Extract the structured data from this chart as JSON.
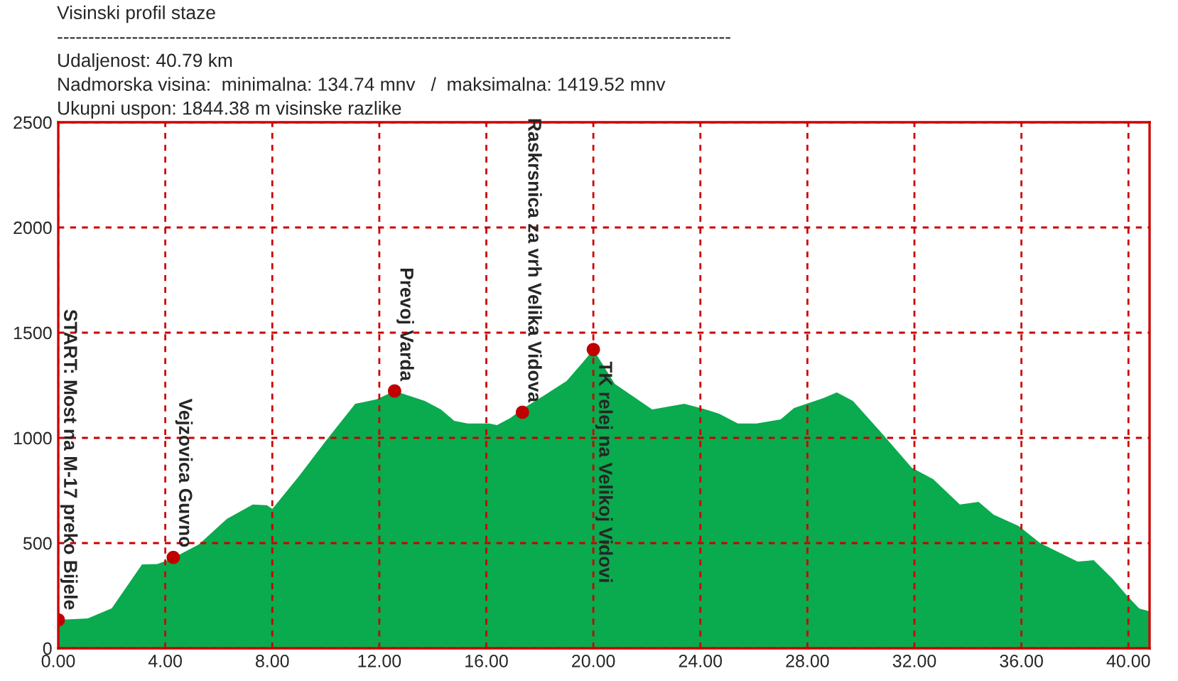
{
  "chart_data": {
    "type": "area",
    "title": "Visinski profil staze",
    "annotations": [
      "------------------------------------------------------------------------------------------------------------",
      "Udaljenost: 40.79 km",
      "Nadmorska visina:  minimalna: 134.74 mnv   /  maksimalna: 1419.52 mnv",
      "Ukupni uspon: 1844.38 m visinske razlike",
      {
        "text": "START: Most na M-17 preko Bijele",
        "x": 0,
        "y": 135
      },
      {
        "text": "Vejzovica Guvno",
        "x": 4.3,
        "y": 432
      },
      {
        "text": "Prevoj Varda",
        "x": 12.57,
        "y": 1223
      },
      {
        "text": "Raskrsnica za vrh Velika Vidova",
        "x": 17.35,
        "y": 1122
      },
      {
        "text": "TK relej na Velikoj Vidovi",
        "x": 20.0,
        "y": 1420
      }
    ],
    "series": [
      {
        "color": "#0aaa4e",
        "x": [
          0,
          1.1,
          2.0,
          3.13,
          3.7,
          4.24,
          5.25,
          6.3,
          7.27,
          7.8,
          8.0,
          9.0,
          10.0,
          11.1,
          11.9,
          12.57,
          13.7,
          14.3,
          14.8,
          15.3,
          16.1,
          16.4,
          16.9,
          17.4,
          18.0,
          19.0,
          19.6,
          19.95,
          20.0,
          20.8,
          22.2,
          23.4,
          24.2,
          24.7,
          25.4,
          26.1,
          27.0,
          27.5,
          28.6,
          29.1,
          29.7,
          30.7,
          31.9,
          32.7,
          33.7,
          34.4,
          34.96,
          35.9,
          36.7,
          38.1,
          38.7,
          39.4,
          39.9,
          40.4,
          40.79
        ],
        "values": [
          135,
          142,
          190,
          399,
          400,
          426,
          493,
          615,
          683,
          680,
          662,
          818,
          986,
          1162,
          1183,
          1223,
          1176,
          1135,
          1081,
          1068,
          1068,
          1061,
          1095,
          1142,
          1189,
          1270,
          1358,
          1412,
          1420,
          1257,
          1135,
          1162,
          1135,
          1115,
          1068,
          1068,
          1088,
          1142,
          1189,
          1216,
          1176,
          1034,
          858,
          804,
          683,
          696,
          635,
          581,
          500,
          412,
          419,
          331,
          257,
          189,
          176
        ]
      },
      {
        "type": "scatter",
        "color": "#c00000",
        "marker": "circle",
        "x": [
          0,
          4.3,
          12.57,
          17.35,
          20.0
        ],
        "values": [
          135,
          432,
          1223,
          1122,
          1420
        ]
      }
    ],
    "xlim": [
      0,
      40.79
    ],
    "ylim": [
      0,
      2500
    ],
    "xticks": [
      {
        "value": 0,
        "label": "0.00"
      },
      {
        "value": 4,
        "label": "4.00"
      },
      {
        "value": 8,
        "label": "8.00"
      },
      {
        "value": 12,
        "label": "12.00"
      },
      {
        "value": 16,
        "label": "16.00"
      },
      {
        "value": 20,
        "label": "20.00"
      },
      {
        "value": 24,
        "label": "24.00"
      },
      {
        "value": 28,
        "label": "28.00"
      },
      {
        "value": 32,
        "label": "32.00"
      },
      {
        "value": 36,
        "label": "36.00"
      },
      {
        "value": 40,
        "label": "40.00"
      }
    ],
    "yticks": [
      0,
      500,
      1000,
      1500,
      2000,
      2500
    ],
    "grid": true
  }
}
